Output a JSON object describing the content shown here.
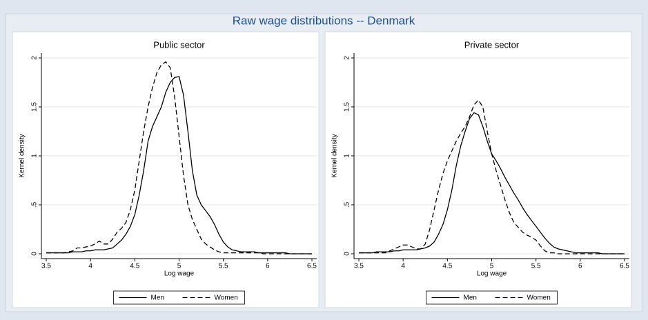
{
  "title": "Raw wage distributions -- Denmark",
  "chart_data": [
    {
      "type": "line",
      "title": "Public sector",
      "xlabel": "Log wage",
      "ylabel": "Kernel density",
      "x": [
        3.5,
        3.55,
        3.6,
        3.65,
        3.7,
        3.75,
        3.8,
        3.85,
        3.9,
        3.95,
        4,
        4.05,
        4.1,
        4.15,
        4.2,
        4.25,
        4.3,
        4.35,
        4.4,
        4.45,
        4.5,
        4.55,
        4.6,
        4.65,
        4.7,
        4.75,
        4.8,
        4.85,
        4.9,
        4.95,
        5,
        5.05,
        5.1,
        5.15,
        5.2,
        5.25,
        5.3,
        5.35,
        5.4,
        5.45,
        5.5,
        5.55,
        5.6,
        5.65,
        5.7,
        5.75,
        5.8,
        5.85,
        5.9,
        5.95,
        6,
        6.05,
        6.1,
        6.15,
        6.2,
        6.25,
        6.3,
        6.35,
        6.4,
        6.45,
        6.5
      ],
      "series": [
        {
          "name": "Men",
          "color": "#000000",
          "dash": "solid",
          "values": [
            0.01,
            0.01,
            0.01,
            0.01,
            0.01,
            0.01,
            0.02,
            0.02,
            0.02,
            0.03,
            0.03,
            0.04,
            0.04,
            0.04,
            0.05,
            0.06,
            0.1,
            0.14,
            0.2,
            0.28,
            0.4,
            0.6,
            0.85,
            1.15,
            1.3,
            1.4,
            1.5,
            1.65,
            1.75,
            1.8,
            1.81,
            1.62,
            1.25,
            0.85,
            0.6,
            0.5,
            0.44,
            0.38,
            0.3,
            0.2,
            0.12,
            0.07,
            0.04,
            0.03,
            0.02,
            0.02,
            0.02,
            0.02,
            0.01,
            0.01,
            0.01,
            0.01,
            0.01,
            0.01,
            0.01,
            0,
            0,
            0,
            0,
            0,
            0
          ]
        },
        {
          "name": "Women",
          "color": "#000000",
          "dash": "dashed",
          "values": [
            0.01,
            0.01,
            0.01,
            0.01,
            0.01,
            0.02,
            0.03,
            0.06,
            0.06,
            0.07,
            0.08,
            0.1,
            0.13,
            0.1,
            0.1,
            0.15,
            0.22,
            0.26,
            0.32,
            0.45,
            0.65,
            0.95,
            1.25,
            1.5,
            1.7,
            1.85,
            1.93,
            1.96,
            1.9,
            1.6,
            1.2,
            0.8,
            0.5,
            0.35,
            0.25,
            0.15,
            0.1,
            0.07,
            0.04,
            0.02,
            0.01,
            0.01,
            0.01,
            0.01,
            0.01,
            0.01,
            0.01,
            0.01,
            0.01,
            0,
            0,
            0,
            0,
            0,
            0,
            0,
            0,
            0,
            0,
            0,
            0
          ]
        }
      ],
      "xlim": [
        3.5,
        6.5
      ],
      "xticks": [
        3.5,
        4,
        4.5,
        5,
        5.5,
        6,
        6.5
      ],
      "ylim": [
        0,
        2
      ],
      "yticks": [
        0,
        {
          "value": 0.5,
          "label": ".5"
        },
        1,
        1.5,
        2
      ],
      "grid": true,
      "legend": "bottom"
    },
    {
      "type": "line",
      "title": "Private sector",
      "xlabel": "Log wage",
      "ylabel": "Kernel density",
      "x": [
        3.5,
        3.55,
        3.6,
        3.65,
        3.7,
        3.75,
        3.8,
        3.85,
        3.9,
        3.95,
        4,
        4.05,
        4.1,
        4.15,
        4.2,
        4.25,
        4.3,
        4.35,
        4.4,
        4.45,
        4.5,
        4.55,
        4.6,
        4.65,
        4.7,
        4.75,
        4.8,
        4.85,
        4.9,
        4.95,
        5,
        5.05,
        5.1,
        5.15,
        5.2,
        5.25,
        5.3,
        5.35,
        5.4,
        5.45,
        5.5,
        5.55,
        5.6,
        5.65,
        5.7,
        5.75,
        5.8,
        5.85,
        5.9,
        5.95,
        6,
        6.05,
        6.1,
        6.15,
        6.2,
        6.25,
        6.3,
        6.35,
        6.4,
        6.45,
        6.5
      ],
      "series": [
        {
          "name": "Men",
          "color": "#000000",
          "dash": "solid",
          "values": [
            0.01,
            0.01,
            0.01,
            0.01,
            0.02,
            0.02,
            0.02,
            0.02,
            0.03,
            0.03,
            0.04,
            0.04,
            0.04,
            0.04,
            0.05,
            0.06,
            0.08,
            0.12,
            0.2,
            0.3,
            0.45,
            0.65,
            0.9,
            1.1,
            1.25,
            1.38,
            1.44,
            1.42,
            1.3,
            1.15,
            1.02,
            0.95,
            0.87,
            0.78,
            0.7,
            0.62,
            0.55,
            0.47,
            0.4,
            0.34,
            0.28,
            0.22,
            0.16,
            0.11,
            0.07,
            0.05,
            0.04,
            0.03,
            0.02,
            0.01,
            0.01,
            0.01,
            0.01,
            0.01,
            0.01,
            0,
            0,
            0,
            0,
            0,
            0
          ]
        },
        {
          "name": "Women",
          "color": "#000000",
          "dash": "dashed",
          "values": [
            0.01,
            0.01,
            0.01,
            0.01,
            0.01,
            0.01,
            0.01,
            0.03,
            0.05,
            0.07,
            0.09,
            0.09,
            0.07,
            0.05,
            0.05,
            0.1,
            0.25,
            0.45,
            0.65,
            0.82,
            0.95,
            1.05,
            1.15,
            1.23,
            1.3,
            1.4,
            1.52,
            1.57,
            1.5,
            1.25,
            1.02,
            0.85,
            0.7,
            0.55,
            0.42,
            0.32,
            0.27,
            0.22,
            0.19,
            0.17,
            0.14,
            0.08,
            0.03,
            0.01,
            0.01,
            0,
            0,
            0,
            0,
            0,
            0,
            0,
            0,
            0,
            0,
            0,
            0,
            0,
            0,
            0,
            0
          ]
        }
      ],
      "xlim": [
        3.5,
        6.5
      ],
      "xticks": [
        3.5,
        4,
        4.5,
        5,
        5.5,
        6,
        6.5
      ],
      "ylim": [
        0,
        2
      ],
      "yticks": [
        0,
        {
          "value": 0.5,
          "label": ".5"
        },
        1,
        1.5,
        2
      ],
      "grid": true,
      "legend": "bottom"
    }
  ]
}
